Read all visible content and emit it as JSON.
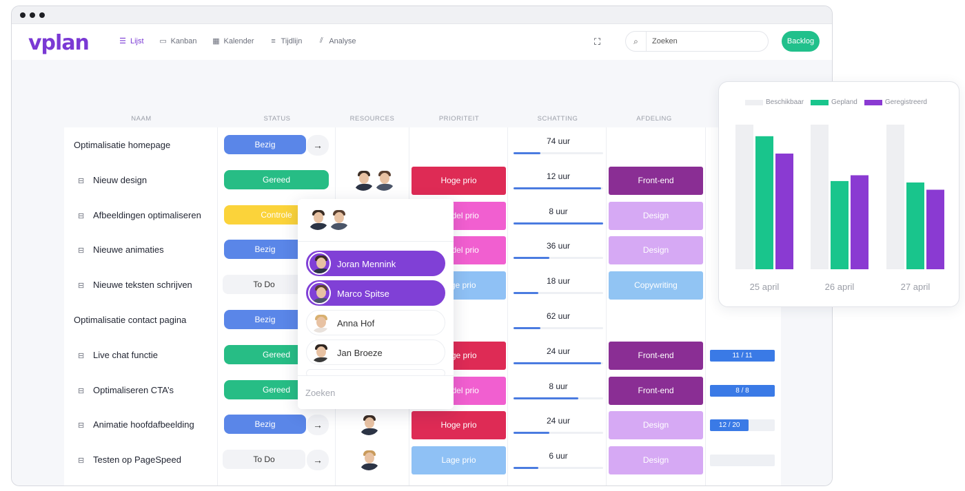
{
  "app": {
    "logo": "vplan"
  },
  "nav": {
    "items": [
      {
        "label": "Lijst",
        "icon": "list-icon",
        "active": true
      },
      {
        "label": "Kanban",
        "icon": "kanban-icon",
        "active": false
      },
      {
        "label": "Kalender",
        "icon": "calendar-icon",
        "active": false
      },
      {
        "label": "Tijdlijn",
        "icon": "timeline-icon",
        "active": false
      },
      {
        "label": "Analyse",
        "icon": "chart-icon",
        "active": false
      }
    ]
  },
  "search": {
    "placeholder": "Zoeken"
  },
  "backlog_label": "Backlog",
  "columns": [
    "NAAM",
    "STATUS",
    "RESOURCES",
    "PRIORITEIT",
    "SCHATTING",
    "AFDELING"
  ],
  "colors": {
    "Bezig": "#5a86e8",
    "Gereed": "#27bd85",
    "Controle": "#fbd33a",
    "To Do": "#f2f3f6",
    "Hoge prio": "#de2b55",
    "Middel prio": "#f15fd0",
    "Lage prio": "#8fc1f5",
    "Front-end": "#8a2e94",
    "Design": "#d6a9f4",
    "Copywriting": "#91c4f3"
  },
  "rows": [
    {
      "name": "Optimalisatie homepage",
      "sub": false,
      "status": "Bezig",
      "arrow": true,
      "resources": 0,
      "prio": "",
      "est": "74 uur",
      "est_pct": 0.3,
      "dept": "",
      "progress": ""
    },
    {
      "name": "Nieuw design",
      "sub": true,
      "status": "Gereed",
      "arrow": false,
      "resources": 2,
      "prio": "Hoge prio",
      "est": "12 uur",
      "est_pct": 0.98,
      "dept": "Front-end",
      "progress": ""
    },
    {
      "name": "Afbeeldingen optimaliseren",
      "sub": true,
      "status": "Controle",
      "arrow": false,
      "resources": 0,
      "prio": "Middel prio",
      "est": "8 uur",
      "est_pct": 1.0,
      "dept": "Design",
      "progress": ""
    },
    {
      "name": "Nieuwe animaties",
      "sub": true,
      "status": "Bezig",
      "arrow": false,
      "resources": 0,
      "prio": "Middel prio",
      "est": "36 uur",
      "est_pct": 0.4,
      "dept": "Design",
      "progress": ""
    },
    {
      "name": "Nieuwe teksten schrijven",
      "sub": true,
      "status": "To Do",
      "arrow": false,
      "resources": 0,
      "prio": "Lage prio",
      "est": "18 uur",
      "est_pct": 0.28,
      "dept": "Copywriting",
      "progress": ""
    },
    {
      "name": "Optimalisatie contact pagina",
      "sub": false,
      "status": "Bezig",
      "arrow": false,
      "resources": 0,
      "prio": "",
      "est": "62 uur",
      "est_pct": 0.3,
      "dept": "",
      "progress": ""
    },
    {
      "name": "Live chat functie",
      "sub": true,
      "status": "Gereed",
      "arrow": false,
      "resources": 0,
      "prio": "Hoge prio",
      "est": "24 uur",
      "est_pct": 0.98,
      "dept": "Front-end",
      "progress": "11 / 11",
      "progress_pct": 1.0
    },
    {
      "name": "Optimaliseren CTA’s",
      "sub": true,
      "status": "Gereed",
      "arrow": false,
      "resources": 0,
      "prio": "Middel prio",
      "est": "8 uur",
      "est_pct": 0.72,
      "dept": "Front-end",
      "progress": "8 / 8",
      "progress_pct": 1.0
    },
    {
      "name": "Animatie hoofdafbeelding",
      "sub": true,
      "status": "Bezig",
      "arrow": true,
      "resources": 1,
      "prio": "Hoge prio",
      "est": "24 uur",
      "est_pct": 0.4,
      "dept": "Design",
      "progress": "12 / 20",
      "progress_pct": 0.6
    },
    {
      "name": "Testen op PageSpeed",
      "sub": true,
      "status": "To Do",
      "arrow": true,
      "resources": 1,
      "prio": "Lage prio",
      "est": "6 uur",
      "est_pct": 0.28,
      "dept": "Design",
      "progress": "",
      "progress_pct": 0
    }
  ],
  "popover": {
    "people": [
      {
        "name": "Joran Mennink",
        "selected": true
      },
      {
        "name": "Marco Spitse",
        "selected": true
      },
      {
        "name": "Anna Hof",
        "selected": false
      },
      {
        "name": "Jan Broeze",
        "selected": false
      }
    ],
    "search_placeholder": "Zoeken"
  },
  "chart_data": {
    "type": "bar",
    "categories": [
      "25 april",
      "26 april",
      "27 april"
    ],
    "series": [
      {
        "name": "Beschikbaar",
        "color": "#eeeff2",
        "values": [
          100,
          100,
          100
        ]
      },
      {
        "name": "Gepland",
        "color": "#19c58c",
        "values": [
          92,
          61,
          60
        ]
      },
      {
        "name": "Geregistreerd",
        "color": "#8a3ad2",
        "values": [
          80,
          65,
          55
        ]
      }
    ],
    "ylim": [
      0,
      100
    ],
    "legend": "top",
    "grid": false
  }
}
